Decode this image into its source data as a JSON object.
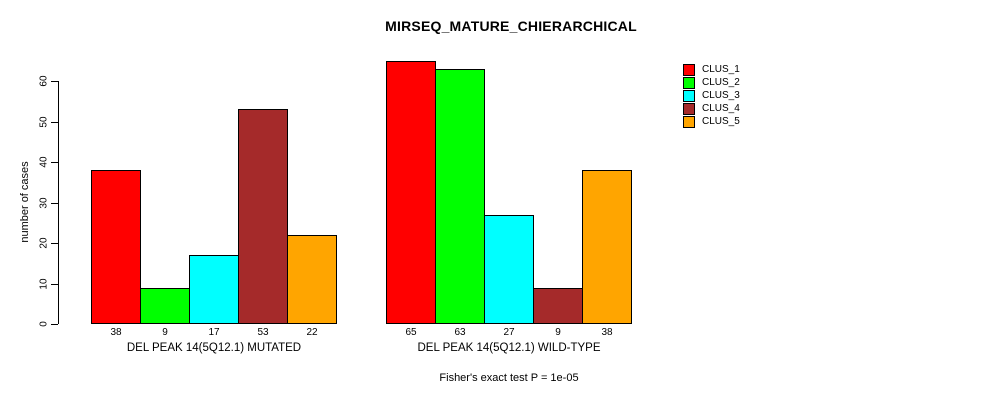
{
  "title": "MIRSEQ_MATURE_CHIERARCHICAL",
  "caption": "Fisher's exact test P = 1e-05",
  "y_axis": {
    "label": "number of cases",
    "ticks": [
      0,
      10,
      20,
      30,
      40,
      50,
      60
    ]
  },
  "legend": {
    "items": [
      {
        "label": "CLUS_1",
        "color": "#FF0000"
      },
      {
        "label": "CLUS_2",
        "color": "#00FF00"
      },
      {
        "label": "CLUS_3",
        "color": "#00FFFF"
      },
      {
        "label": "CLUS_4",
        "color": "#A52A2A"
      },
      {
        "label": "CLUS_5",
        "color": "#FFA500"
      }
    ]
  },
  "chart_data": {
    "type": "bar",
    "title": "MIRSEQ_MATURE_CHIERARCHICAL",
    "ylabel": "number of cases",
    "ylim": [
      0,
      65
    ],
    "grid": false,
    "legend_position": "right",
    "categories": [
      "CLUS_1",
      "CLUS_2",
      "CLUS_3",
      "CLUS_4",
      "CLUS_5"
    ],
    "colors": [
      "#FF0000",
      "#00FF00",
      "#00FFFF",
      "#A52A2A",
      "#FFA500"
    ],
    "groups": [
      {
        "label": "DEL PEAK 14(5Q12.1) MUTATED",
        "values": [
          38,
          9,
          17,
          53,
          22
        ]
      },
      {
        "label": "DEL PEAK 14(5Q12.1) WILD-TYPE",
        "values": [
          65,
          63,
          27,
          9,
          38
        ]
      }
    ],
    "annotation": "Fisher's exact test P = 1e-05"
  }
}
